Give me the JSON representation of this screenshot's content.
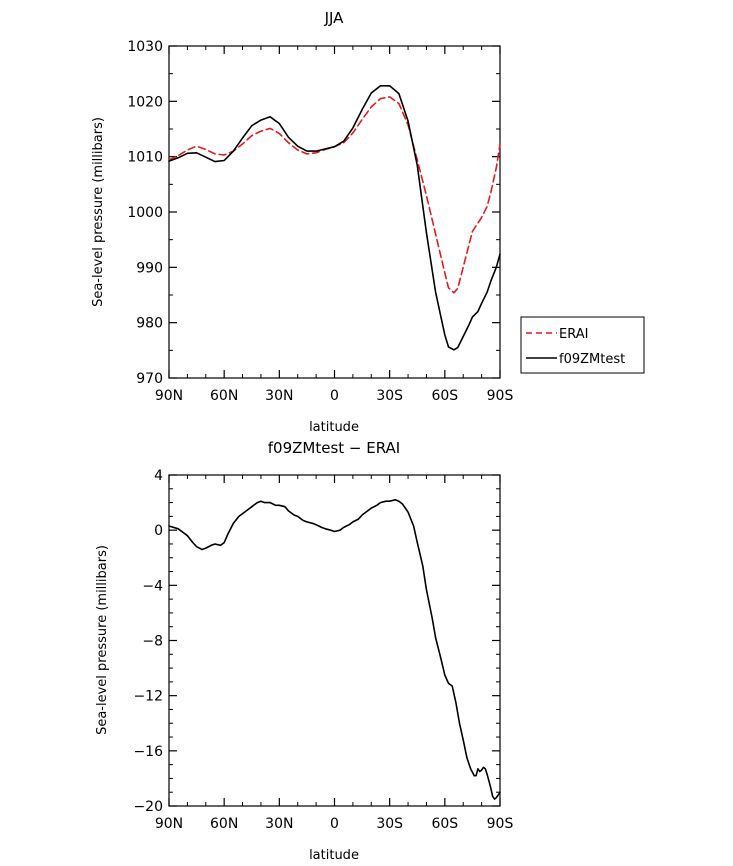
{
  "chart_data": [
    {
      "type": "line",
      "title": "JJA",
      "xlabel": "latitude",
      "ylabel": "Sea-level pressure (millibars)",
      "xlim": [
        -90,
        90
      ],
      "ylim": [
        970,
        1030
      ],
      "x_ticks": [
        -90,
        -60,
        -30,
        0,
        30,
        60,
        90
      ],
      "x_tick_labels": [
        "90N",
        "60N",
        "30N",
        "0",
        "30S",
        "60S",
        "90S"
      ],
      "y_ticks": [
        970,
        980,
        990,
        1000,
        1010,
        1020,
        1030
      ],
      "y_tick_labels": [
        "970",
        "980",
        "990",
        "1000",
        "1010",
        "1020",
        "1030"
      ],
      "legend": {
        "placement": "outside-right"
      },
      "series": [
        {
          "name": "ERAI",
          "color": "#e41a1c",
          "dash": "dashed",
          "x": [
            -90,
            -85,
            -80,
            -75,
            -70,
            -65,
            -60,
            -55,
            -50,
            -45,
            -40,
            -35,
            -30,
            -25,
            -20,
            -15,
            -10,
            -5,
            0,
            5,
            10,
            15,
            20,
            25,
            30,
            35,
            40,
            45,
            50,
            55,
            60,
            62,
            65,
            67,
            70,
            75,
            80,
            83,
            85,
            88,
            90
          ],
          "values": [
            1009.4,
            1010.2,
            1011.2,
            1011.9,
            1011.3,
            1010.5,
            1010.3,
            1011.0,
            1012.3,
            1013.8,
            1014.6,
            1015.1,
            1014.2,
            1012.5,
            1011.2,
            1010.5,
            1010.7,
            1011.3,
            1011.8,
            1012.5,
            1014.3,
            1016.7,
            1019.0,
            1020.5,
            1020.8,
            1019.6,
            1015.7,
            1009.4,
            1003.0,
            996.0,
            989.0,
            986.3,
            985.4,
            986.2,
            990.0,
            996.5,
            999.0,
            1001.0,
            1003.5,
            1008.0,
            1012.2
          ]
        },
        {
          "name": "f09ZMtest",
          "color": "#000000",
          "dash": "solid",
          "x": [
            -90,
            -85,
            -80,
            -75,
            -70,
            -65,
            -60,
            -55,
            -50,
            -45,
            -40,
            -35,
            -30,
            -25,
            -20,
            -15,
            -10,
            -5,
            0,
            5,
            10,
            15,
            20,
            25,
            30,
            35,
            40,
            45,
            50,
            55,
            60,
            62,
            65,
            67,
            70,
            73,
            75,
            78,
            80,
            83,
            85,
            88,
            90
          ],
          "values": [
            1009.2,
            1009.8,
            1010.6,
            1010.7,
            1009.9,
            1009.1,
            1009.3,
            1011.0,
            1013.4,
            1015.6,
            1016.6,
            1017.2,
            1016.0,
            1013.5,
            1011.9,
            1011.0,
            1011.0,
            1011.4,
            1011.8,
            1012.8,
            1015.2,
            1018.5,
            1021.5,
            1022.8,
            1022.8,
            1021.4,
            1016.4,
            1008.4,
            996.3,
            985.5,
            977.8,
            975.6,
            975.1,
            975.5,
            977.5,
            979.5,
            981.0,
            982.0,
            983.5,
            985.5,
            987.5,
            990.0,
            992.4
          ]
        }
      ]
    },
    {
      "type": "line",
      "title": "f09ZMtest − ERAI",
      "xlabel": "latitude",
      "ylabel": "Sea-level pressure (millibars)",
      "xlim": [
        -90,
        90
      ],
      "ylim": [
        -20,
        4
      ],
      "x_ticks": [
        -90,
        -60,
        -30,
        0,
        30,
        60,
        90
      ],
      "x_tick_labels": [
        "90N",
        "60N",
        "30N",
        "0",
        "30S",
        "60S",
        "90S"
      ],
      "y_ticks": [
        -20,
        -16,
        -12,
        -8,
        -4,
        0,
        4
      ],
      "y_tick_labels": [
        "−20",
        "−16",
        "−12",
        "−8",
        "−4",
        "0",
        "4"
      ],
      "series": [
        {
          "color": "#000000",
          "dash": "solid",
          "x": [
            -90,
            -85,
            -82,
            -80,
            -77,
            -75,
            -72,
            -70,
            -67,
            -65,
            -62,
            -60,
            -58,
            -55,
            -52,
            -50,
            -47,
            -45,
            -42,
            -40,
            -38,
            -35,
            -32,
            -30,
            -27,
            -25,
            -22,
            -20,
            -17,
            -15,
            -12,
            -10,
            -7,
            -5,
            -2,
            0,
            3,
            5,
            8,
            10,
            13,
            15,
            18,
            20,
            23,
            25,
            28,
            30,
            33,
            35,
            37,
            40,
            43,
            45,
            48,
            50,
            53,
            55,
            58,
            60,
            62,
            64,
            66,
            68,
            70,
            72,
            74,
            76,
            77,
            78,
            79,
            80,
            81,
            82,
            83,
            84,
            85,
            86,
            87,
            88,
            89,
            90
          ],
          "values": [
            0.3,
            0.1,
            -0.2,
            -0.4,
            -0.9,
            -1.2,
            -1.4,
            -1.3,
            -1.1,
            -1.0,
            -1.1,
            -0.9,
            -0.3,
            0.5,
            1.0,
            1.2,
            1.5,
            1.7,
            2.0,
            2.1,
            2.0,
            2.0,
            1.8,
            1.8,
            1.7,
            1.4,
            1.1,
            1.0,
            0.7,
            0.6,
            0.5,
            0.4,
            0.2,
            0.1,
            0.0,
            -0.1,
            0.0,
            0.2,
            0.4,
            0.6,
            0.8,
            1.1,
            1.4,
            1.6,
            1.8,
            2.0,
            2.1,
            2.1,
            2.2,
            2.1,
            1.9,
            1.3,
            0.3,
            -0.9,
            -2.6,
            -4.3,
            -6.3,
            -7.8,
            -9.4,
            -10.5,
            -11.1,
            -11.3,
            -12.5,
            -14.0,
            -15.2,
            -16.5,
            -17.3,
            -17.8,
            -17.8,
            -17.3,
            -17.5,
            -17.4,
            -17.2,
            -17.3,
            -17.7,
            -18.2,
            -18.7,
            -19.3,
            -19.5,
            -19.4,
            -19.2,
            -19.0
          ]
        }
      ]
    }
  ]
}
